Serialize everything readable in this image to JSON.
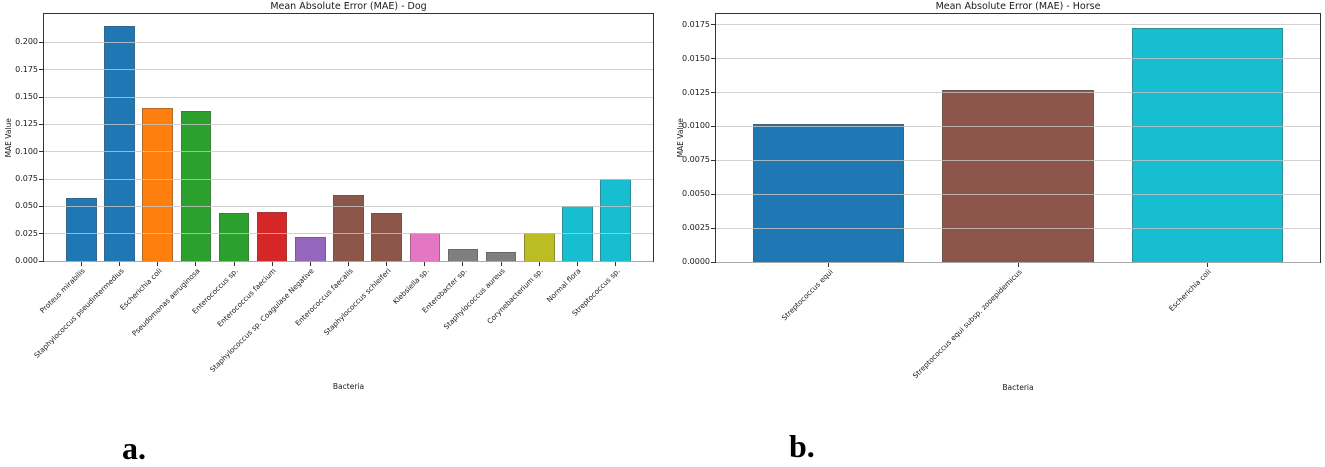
{
  "figure": {
    "captions": {
      "a": "a.",
      "b": "b."
    }
  },
  "chart_data": [
    {
      "type": "bar",
      "title": "Mean Absolute Error (MAE) - Dog",
      "xlabel": "Bacteria",
      "ylabel": "MAE Value",
      "categories": [
        "Proteus mirabilis",
        "Staphylococcus pseudintermedius",
        "Escherichia coli",
        "Pseudomonas aeruginosa",
        "Enterococcus sp.",
        "Enterococcus faecium",
        "Staphylococcus sp. Coagulase Negative",
        "Enterococcus faecalis",
        "Staphylococcus schleiferi",
        "Klebsiella sp.",
        "Enterobacter sp.",
        "Staphylococcus aureus",
        "Corynebacterium sp.",
        "Normal flora",
        "Streptococcus sp."
      ],
      "values": [
        0.058,
        0.215,
        0.14,
        0.137,
        0.044,
        0.045,
        0.022,
        0.06,
        0.044,
        0.026,
        0.011,
        0.008,
        0.026,
        0.05,
        0.075
      ],
      "bar_colors": [
        "#1f77b4",
        "#1f77b4",
        "#ff7f0e",
        "#2ca02c",
        "#2ca02c",
        "#d62728",
        "#9467bd",
        "#8c564b",
        "#8c564b",
        "#e377c2",
        "#7f7f7f",
        "#7f7f7f",
        "#bcbd22",
        "#17becf",
        "#17becf"
      ],
      "yticks": [
        0,
        0.025,
        0.05,
        0.075,
        0.1,
        0.125,
        0.15,
        0.175,
        0.2
      ],
      "ytick_labels": [
        "0.000",
        "0.025",
        "0.050",
        "0.075",
        "0.100",
        "0.125",
        "0.150",
        "0.175",
        "0.200"
      ],
      "ylim": [
        0,
        0.226
      ],
      "grid": true,
      "legend": "none"
    },
    {
      "type": "bar",
      "title": "Mean Absolute Error (MAE) - Horse",
      "xlabel": "Bacteria",
      "ylabel": "MAE Value",
      "categories": [
        "Streptococcus equi",
        "Streptococcus equi subsp. zooepidemicus",
        "Escherichia coli"
      ],
      "values": [
        0.0102,
        0.0127,
        0.0173
      ],
      "bar_colors": [
        "#1f77b4",
        "#8c564b",
        "#17becf"
      ],
      "yticks": [
        0,
        0.0025,
        0.005,
        0.0075,
        0.01,
        0.0125,
        0.015,
        0.0175
      ],
      "ytick_labels": [
        "0.0000",
        "0.0025",
        "0.0050",
        "0.0075",
        "0.0100",
        "0.0125",
        "0.0150",
        "0.0175"
      ],
      "ylim": [
        0,
        0.0183
      ],
      "grid": true,
      "legend": "none"
    }
  ]
}
